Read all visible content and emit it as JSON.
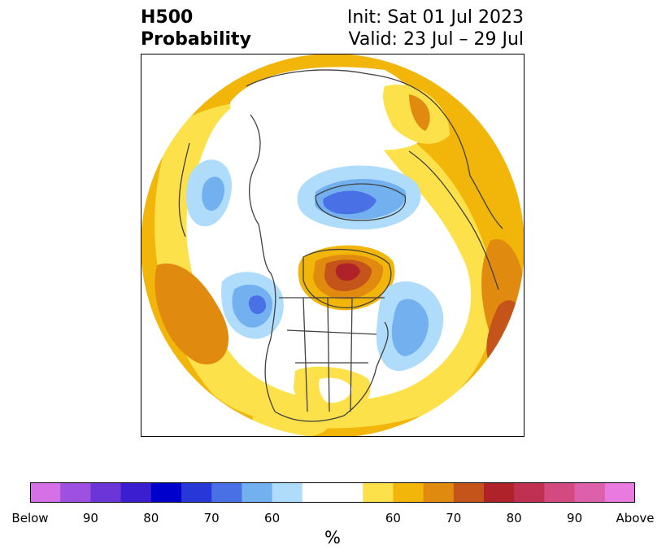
{
  "title": {
    "left_line1": "H500",
    "left_line2": "Probability",
    "right_line1": "Init: Sat 01 Jul 2023",
    "right_line2": "Valid: 23 Jul – 29 Jul"
  },
  "map": {
    "projection": "north-polar-stereographic",
    "region": "Northern Hemisphere"
  },
  "colorbar": {
    "unit": "%",
    "colors": [
      "#d670e6",
      "#9e50e0",
      "#6c35d8",
      "#3a1ed0",
      "#0000cd",
      "#2838d8",
      "#4a70e6",
      "#72b0f0",
      "#aedcfa",
      "#ffffff",
      "#ffffff",
      "#fde14a",
      "#f2b50a",
      "#e08a10",
      "#c4541a",
      "#b0222a",
      "#c03050",
      "#d24a80",
      "#dc60aa",
      "#e87ae0"
    ],
    "tick_labels": [
      "Below",
      "90",
      "80",
      "70",
      "60",
      "60",
      "70",
      "80",
      "90",
      "Above"
    ]
  }
}
